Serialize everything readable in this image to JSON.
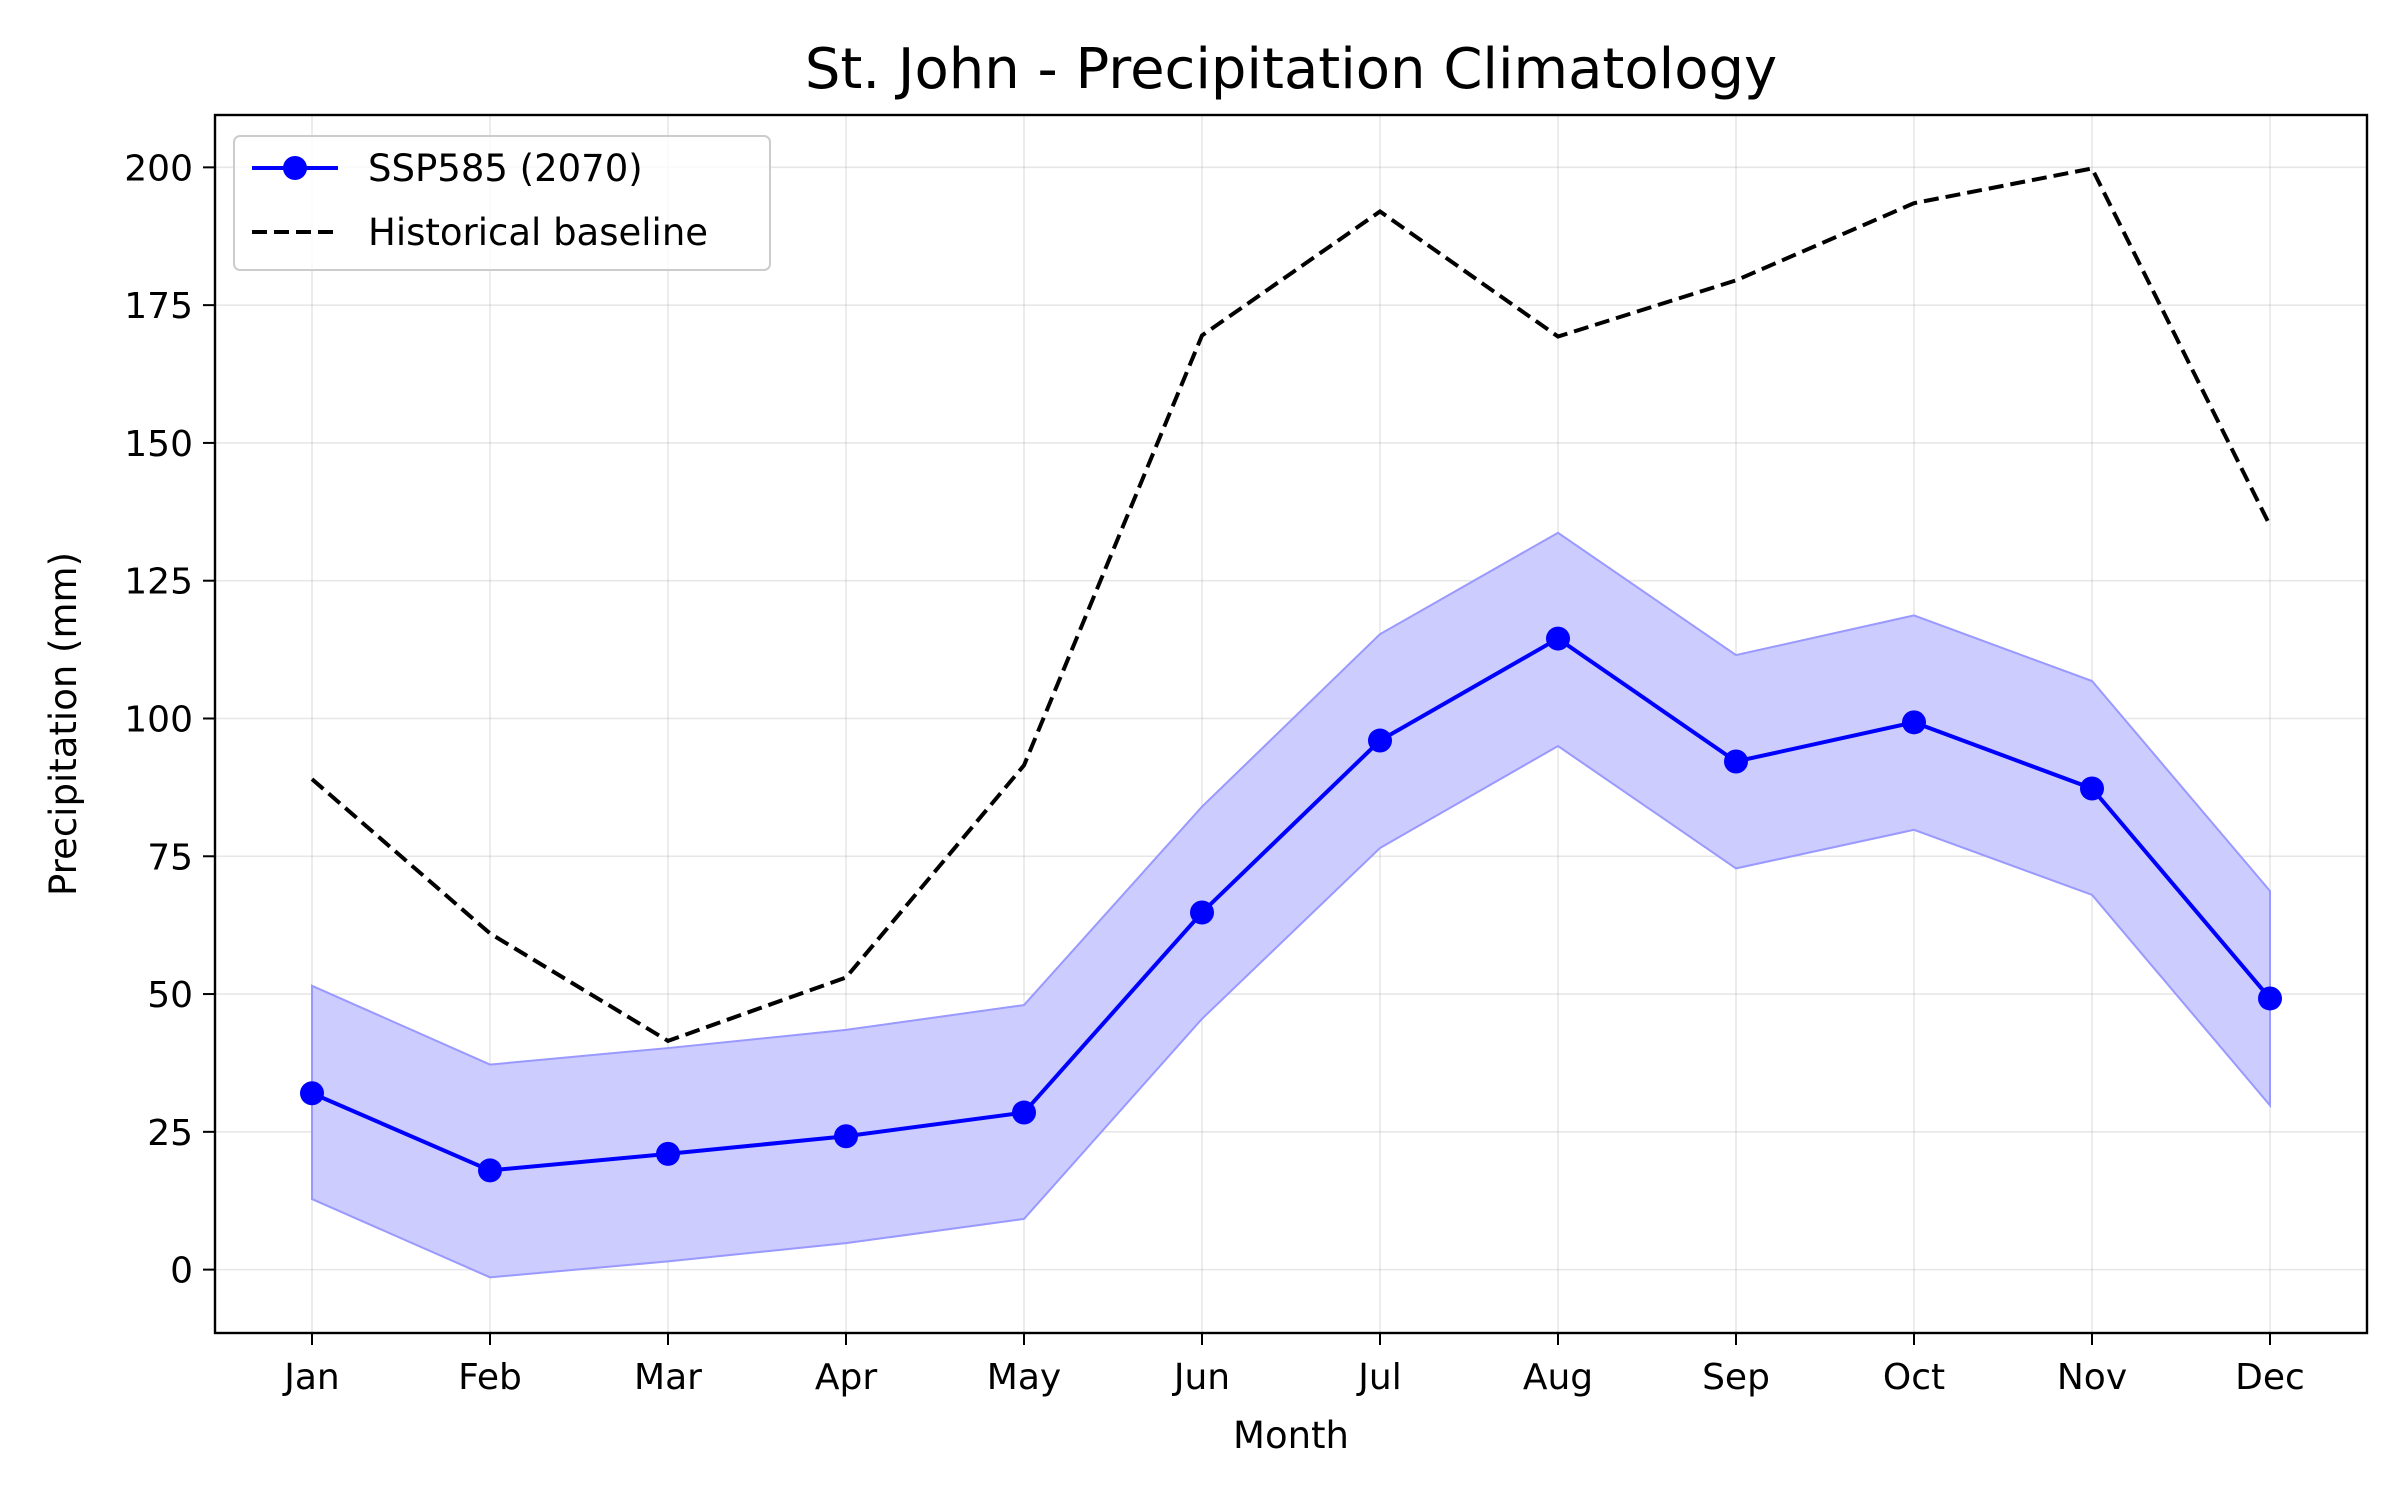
{
  "chart_data": {
    "type": "line",
    "title": "St. John - Precipitation Climatology",
    "xlabel": "Month",
    "ylabel": "Precipitation (mm)",
    "categories": [
      "Jan",
      "Feb",
      "Mar",
      "Apr",
      "May",
      "Jun",
      "Jul",
      "Aug",
      "Sep",
      "Oct",
      "Nov",
      "Dec"
    ],
    "ylim": [
      -11.5,
      209.5
    ],
    "yticks": [
      0,
      25,
      50,
      75,
      100,
      125,
      150,
      175,
      200
    ],
    "grid": true,
    "legend_position": "top-left",
    "series": [
      {
        "name": "SSP585 (2070)",
        "style": "solid-with-markers",
        "color": "#0000ff",
        "values": [
          32.0,
          18.0,
          21.0,
          24.2,
          28.5,
          64.8,
          96.0,
          114.5,
          92.2,
          99.3,
          87.3,
          49.2
        ],
        "band_upper": [
          51.5,
          37.2,
          40.2,
          43.5,
          48.0,
          84.0,
          115.3,
          133.7,
          111.5,
          118.7,
          106.8,
          68.7
        ],
        "band_lower": [
          12.8,
          -1.4,
          1.5,
          4.8,
          9.2,
          45.5,
          76.5,
          95.0,
          72.8,
          79.8,
          68.0,
          29.8
        ],
        "band_color": "#ccccff"
      },
      {
        "name": "Historical baseline",
        "style": "dashed",
        "color": "#000000",
        "values": [
          89.0,
          61.0,
          41.5,
          53.0,
          91.5,
          169.5,
          192.0,
          169.3,
          179.5,
          193.5,
          199.8,
          135.0
        ]
      }
    ]
  }
}
